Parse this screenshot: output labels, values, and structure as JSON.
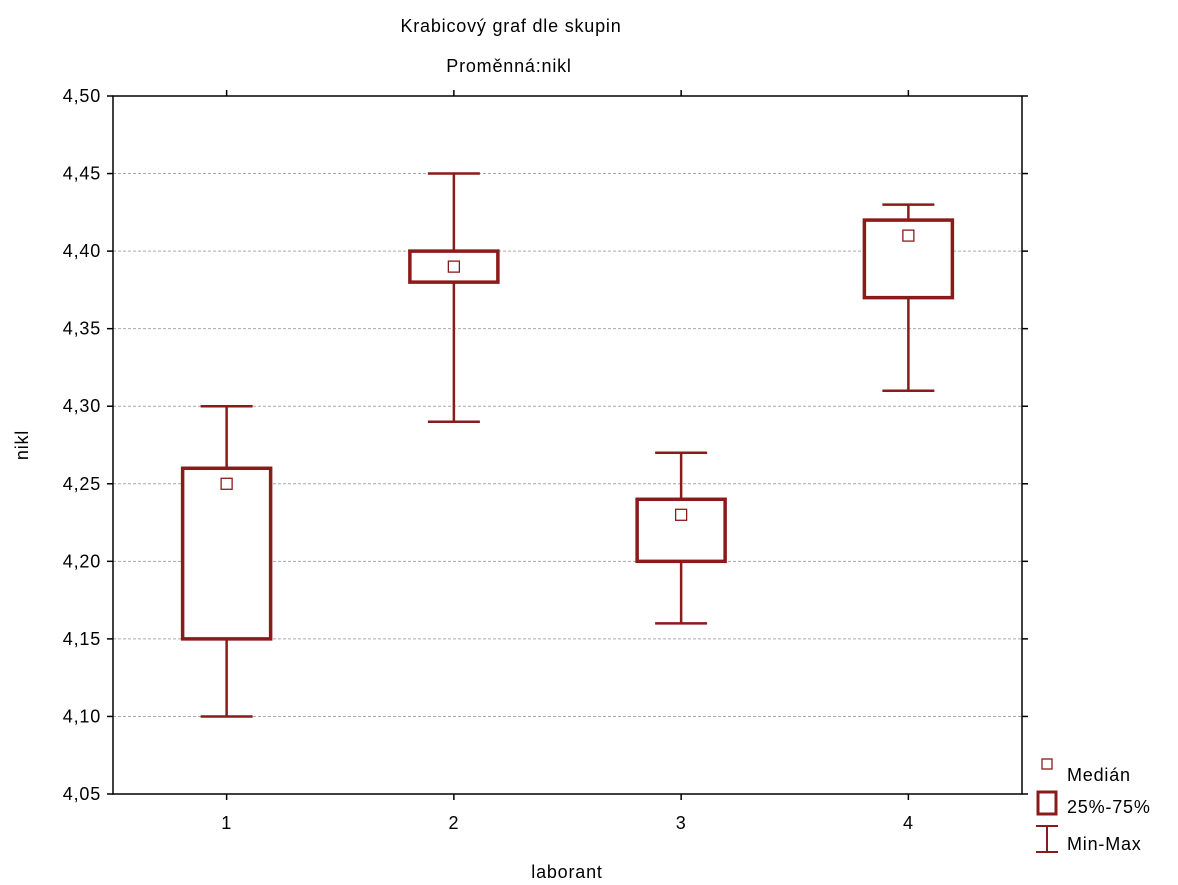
{
  "chart_data": {
    "type": "boxplot",
    "title": "Krabicový graf dle skupin",
    "subtitle": "Proměnná:nikl",
    "xlabel": "laborant",
    "ylabel": "nikl",
    "ylim": [
      4.05,
      4.5
    ],
    "yticks": [
      "4,05",
      "4,10",
      "4,15",
      "4,20",
      "4,25",
      "4,30",
      "4,35",
      "4,40",
      "4,45",
      "4,50"
    ],
    "grid": true,
    "legend_position": "right-bottom",
    "color": "#8b1a1a",
    "categories": [
      "1",
      "2",
      "3",
      "4"
    ],
    "groups": [
      {
        "label": "1",
        "median": 4.25,
        "q1": 4.15,
        "q3": 4.26,
        "min": 4.1,
        "max": 4.3
      },
      {
        "label": "2",
        "median": 4.39,
        "q1": 4.38,
        "q3": 4.4,
        "min": 4.29,
        "max": 4.45
      },
      {
        "label": "3",
        "median": 4.23,
        "q1": 4.2,
        "q3": 4.24,
        "min": 4.16,
        "max": 4.27
      },
      {
        "label": "4",
        "median": 4.41,
        "q1": 4.37,
        "q3": 4.42,
        "min": 4.31,
        "max": 4.43
      }
    ],
    "legend": [
      {
        "icon": "median-marker-icon",
        "label": "Medián"
      },
      {
        "icon": "box-icon",
        "label": "25%-75%"
      },
      {
        "icon": "whisker-icon",
        "label": "Min-Max"
      }
    ]
  }
}
